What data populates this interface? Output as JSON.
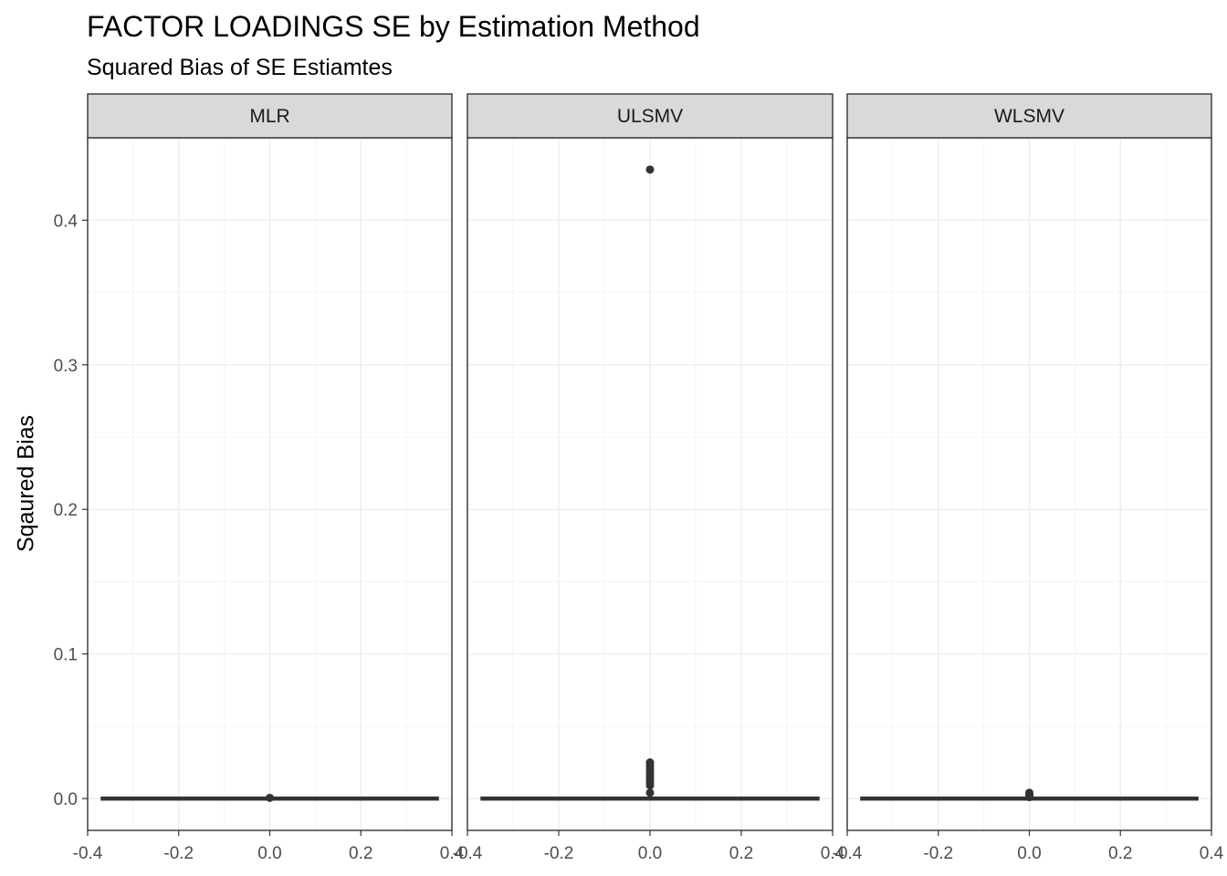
{
  "chart_data": {
    "type": "boxplot",
    "title": "FACTOR LOADINGS SE by Estimation Method",
    "subtitle": "Squared Bias of SE Estiamtes",
    "xlabel": "",
    "ylabel": "Sqaured Bias",
    "xlim": [
      -0.4,
      0.4
    ],
    "ylim": [
      -0.022,
      0.457
    ],
    "x_ticks": [
      -0.4,
      -0.2,
      0.0,
      0.2,
      0.4
    ],
    "x_tick_labels": [
      "-0.4",
      "-0.2",
      "0.0",
      "0.2",
      "0.4"
    ],
    "y_ticks": [
      0.0,
      0.1,
      0.2,
      0.3,
      0.4
    ],
    "y_tick_labels": [
      "0.0",
      "0.1",
      "0.2",
      "0.3",
      "0.4"
    ],
    "grid": true,
    "theme": "bw",
    "panels": [
      {
        "facet": "MLR",
        "box": {
          "xmin": -0.37,
          "xmax": 0.37,
          "q1": 0.0,
          "median": 0.0,
          "q3": 0.0,
          "whisker_low": 0.0,
          "whisker_high": 0.0
        },
        "outliers": [
          0.0005
        ]
      },
      {
        "facet": "ULSMV",
        "box": {
          "xmin": -0.37,
          "xmax": 0.37,
          "q1": 0.0,
          "median": 0.0,
          "q3": 0.0,
          "whisker_low": 0.0,
          "whisker_high": 0.0
        },
        "outliers": [
          0.435,
          0.025,
          0.023,
          0.021,
          0.019,
          0.017,
          0.015,
          0.013,
          0.011,
          0.009,
          0.004
        ]
      },
      {
        "facet": "WLSMV",
        "box": {
          "xmin": -0.37,
          "xmax": 0.37,
          "q1": 0.0,
          "median": 0.0,
          "q3": 0.0,
          "whisker_low": 0.0,
          "whisker_high": 0.0
        },
        "outliers": [
          0.004,
          0.003,
          0.002,
          0.001
        ]
      }
    ]
  },
  "colors": {
    "strip_fill": "#d9d9d9",
    "panel_border": "#333333",
    "grid_major": "#ebebeb",
    "grid_minor": "#f5f5f5",
    "geom": "#333333",
    "tick_text": "#4d4d4d"
  }
}
